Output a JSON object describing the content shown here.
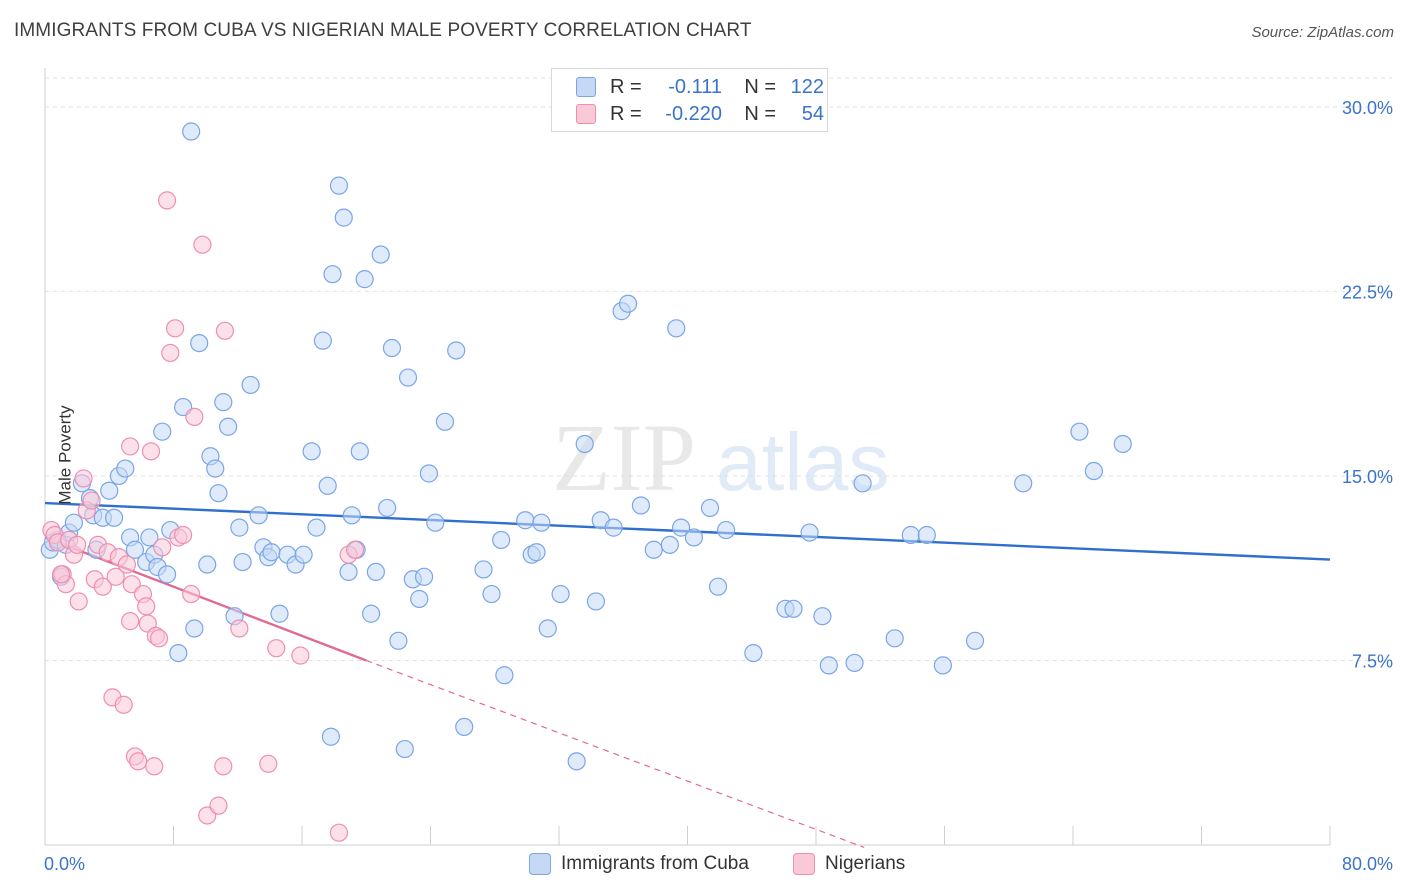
{
  "title": "IMMIGRANTS FROM CUBA VS NIGERIAN MALE POVERTY CORRELATION CHART",
  "source": "Source: ZipAtlas.com",
  "watermark": {
    "zip": "ZIP",
    "atlas": "atlas"
  },
  "legend": {
    "rows": [
      {
        "r_label": "R =",
        "r_value": "-0.111",
        "n_label": "N =",
        "n_value": "122"
      },
      {
        "r_label": "R =",
        "r_value": "-0.220",
        "n_label": "N =",
        "n_value": "54"
      }
    ]
  },
  "bottom_legend": [
    "Immigrants from Cuba",
    "Nigerians"
  ],
  "colors": {
    "cuba_fill": "#c5d8f5",
    "cuba_stroke": "#7aa6e6",
    "cuba_line": "#2f6fce",
    "nig_fill": "#f9c9d8",
    "nig_stroke": "#ee8fb0",
    "nig_line": "#e06a94",
    "tick_text": "#3a73c9",
    "grid": "#e2e2e2"
  },
  "chart_data": {
    "type": "scatter",
    "title": "IMMIGRANTS FROM CUBA VS NIGERIAN MALE POVERTY CORRELATION CHART",
    "xlabel": "",
    "ylabel": "Male Poverty",
    "xlim": [
      0,
      80
    ],
    "ylim": [
      0,
      31.5
    ],
    "x_tick_labels": [
      "0.0%",
      "80.0%"
    ],
    "y_ticks": [
      7.5,
      15.0,
      22.5,
      30.0
    ],
    "y_tick_labels": [
      "7.5%",
      "15.0%",
      "22.5%",
      "30.0%"
    ],
    "grid": true,
    "series": [
      {
        "name": "Immigrants from Cuba",
        "trend": {
          "x0": 0,
          "y0": 13.9,
          "x1": 80,
          "y1": 11.6
        },
        "points": [
          [
            0.3,
            12.0
          ],
          [
            0.5,
            12.3
          ],
          [
            0.8,
            12.4
          ],
          [
            1.0,
            10.9
          ],
          [
            1.3,
            12.2
          ],
          [
            1.5,
            12.7
          ],
          [
            1.8,
            13.1
          ],
          [
            2.3,
            14.7
          ],
          [
            2.8,
            14.1
          ],
          [
            3.0,
            13.4
          ],
          [
            3.2,
            12.0
          ],
          [
            3.6,
            13.3
          ],
          [
            4.0,
            14.4
          ],
          [
            4.3,
            13.3
          ],
          [
            4.6,
            15.0
          ],
          [
            5.0,
            15.3
          ],
          [
            5.3,
            12.5
          ],
          [
            5.6,
            12.0
          ],
          [
            6.3,
            11.5
          ],
          [
            6.5,
            12.5
          ],
          [
            6.8,
            11.8
          ],
          [
            7.0,
            11.3
          ],
          [
            7.3,
            16.8
          ],
          [
            7.6,
            11.0
          ],
          [
            7.8,
            12.8
          ],
          [
            8.3,
            7.8
          ],
          [
            8.6,
            17.8
          ],
          [
            9.1,
            29.0
          ],
          [
            9.3,
            8.8
          ],
          [
            9.6,
            20.4
          ],
          [
            10.1,
            11.4
          ],
          [
            10.3,
            15.8
          ],
          [
            10.6,
            15.3
          ],
          [
            10.8,
            14.3
          ],
          [
            11.1,
            18.0
          ],
          [
            11.4,
            17.0
          ],
          [
            11.8,
            9.3
          ],
          [
            12.1,
            12.9
          ],
          [
            12.3,
            11.5
          ],
          [
            12.8,
            18.7
          ],
          [
            13.3,
            13.4
          ],
          [
            13.6,
            12.1
          ],
          [
            13.9,
            11.7
          ],
          [
            14.1,
            11.9
          ],
          [
            14.6,
            9.4
          ],
          [
            15.1,
            11.8
          ],
          [
            15.6,
            11.4
          ],
          [
            16.1,
            11.8
          ],
          [
            16.6,
            16.0
          ],
          [
            16.9,
            12.9
          ],
          [
            17.3,
            20.5
          ],
          [
            17.6,
            14.6
          ],
          [
            17.9,
            23.2
          ],
          [
            17.8,
            4.4
          ],
          [
            18.3,
            26.8
          ],
          [
            18.6,
            25.5
          ],
          [
            18.9,
            11.1
          ],
          [
            19.1,
            13.4
          ],
          [
            19.4,
            12.0
          ],
          [
            19.6,
            16.0
          ],
          [
            19.9,
            23.0
          ],
          [
            20.3,
            9.4
          ],
          [
            20.6,
            11.1
          ],
          [
            20.9,
            24.0
          ],
          [
            21.3,
            13.7
          ],
          [
            21.6,
            20.2
          ],
          [
            22.0,
            8.3
          ],
          [
            22.4,
            3.9
          ],
          [
            22.6,
            19.0
          ],
          [
            22.9,
            10.8
          ],
          [
            23.3,
            10.0
          ],
          [
            23.6,
            10.9
          ],
          [
            23.9,
            15.1
          ],
          [
            24.3,
            13.1
          ],
          [
            24.9,
            17.2
          ],
          [
            25.6,
            20.1
          ],
          [
            26.1,
            4.8
          ],
          [
            27.3,
            11.2
          ],
          [
            27.8,
            10.2
          ],
          [
            28.4,
            12.4
          ],
          [
            28.6,
            6.9
          ],
          [
            29.9,
            13.2
          ],
          [
            30.3,
            11.8
          ],
          [
            30.6,
            11.9
          ],
          [
            30.9,
            13.1
          ],
          [
            31.3,
            8.8
          ],
          [
            32.1,
            10.2
          ],
          [
            33.1,
            3.4
          ],
          [
            33.6,
            16.3
          ],
          [
            34.3,
            9.9
          ],
          [
            34.6,
            13.2
          ],
          [
            35.4,
            12.9
          ],
          [
            35.9,
            21.7
          ],
          [
            36.3,
            22.0
          ],
          [
            37.1,
            13.8
          ],
          [
            37.9,
            12.0
          ],
          [
            38.9,
            12.2
          ],
          [
            39.3,
            21.0
          ],
          [
            39.6,
            12.9
          ],
          [
            40.4,
            12.5
          ],
          [
            41.4,
            13.7
          ],
          [
            41.9,
            10.5
          ],
          [
            42.4,
            12.8
          ],
          [
            44.1,
            7.8
          ],
          [
            46.1,
            9.6
          ],
          [
            46.6,
            9.6
          ],
          [
            47.6,
            12.7
          ],
          [
            48.4,
            9.3
          ],
          [
            48.8,
            7.3
          ],
          [
            50.4,
            7.4
          ],
          [
            50.9,
            14.7
          ],
          [
            52.9,
            8.4
          ],
          [
            53.9,
            12.6
          ],
          [
            54.9,
            12.6
          ],
          [
            55.9,
            7.3
          ],
          [
            57.9,
            8.3
          ],
          [
            60.9,
            14.7
          ],
          [
            64.4,
            16.8
          ],
          [
            65.3,
            15.2
          ],
          [
            67.1,
            16.3
          ]
        ]
      },
      {
        "name": "Nigerians",
        "trend": {
          "x0": 0,
          "y0": 12.5,
          "x1": 20,
          "y1": 7.5
        },
        "trend_dashed": {
          "x0": 20,
          "y0": 7.5,
          "x1": 51,
          "y1": -0.1
        },
        "points": [
          [
            0.4,
            12.8
          ],
          [
            0.6,
            12.6
          ],
          [
            0.8,
            12.3
          ],
          [
            1.1,
            11.0
          ],
          [
            1.3,
            10.6
          ],
          [
            1.5,
            12.4
          ],
          [
            1.8,
            11.8
          ],
          [
            2.1,
            9.9
          ],
          [
            2.4,
            14.9
          ],
          [
            2.6,
            13.6
          ],
          [
            2.9,
            14.0
          ],
          [
            3.1,
            10.8
          ],
          [
            3.3,
            12.2
          ],
          [
            3.6,
            10.5
          ],
          [
            3.9,
            11.9
          ],
          [
            4.2,
            6.0
          ],
          [
            4.4,
            10.9
          ],
          [
            4.6,
            11.7
          ],
          [
            4.9,
            5.7
          ],
          [
            5.1,
            11.4
          ],
          [
            5.3,
            9.1
          ],
          [
            5.3,
            16.2
          ],
          [
            5.4,
            10.6
          ],
          [
            5.6,
            3.6
          ],
          [
            5.8,
            3.4
          ],
          [
            6.1,
            10.2
          ],
          [
            6.3,
            9.7
          ],
          [
            6.4,
            9.0
          ],
          [
            6.6,
            16.0
          ],
          [
            6.8,
            3.2
          ],
          [
            6.9,
            8.5
          ],
          [
            7.1,
            8.4
          ],
          [
            7.3,
            12.1
          ],
          [
            7.6,
            26.2
          ],
          [
            7.8,
            20.0
          ],
          [
            8.1,
            21.0
          ],
          [
            8.3,
            12.5
          ],
          [
            8.6,
            12.6
          ],
          [
            9.1,
            10.2
          ],
          [
            9.3,
            17.4
          ],
          [
            9.8,
            24.4
          ],
          [
            10.1,
            1.2
          ],
          [
            10.8,
            1.6
          ],
          [
            11.1,
            3.2
          ],
          [
            11.2,
            20.9
          ],
          [
            12.1,
            8.8
          ],
          [
            13.9,
            3.3
          ],
          [
            14.4,
            8.0
          ],
          [
            15.9,
            7.7
          ],
          [
            18.3,
            0.5
          ],
          [
            18.9,
            11.8
          ],
          [
            19.3,
            12.0
          ],
          [
            1.0,
            11.0
          ],
          [
            2.0,
            12.2
          ]
        ]
      }
    ]
  }
}
